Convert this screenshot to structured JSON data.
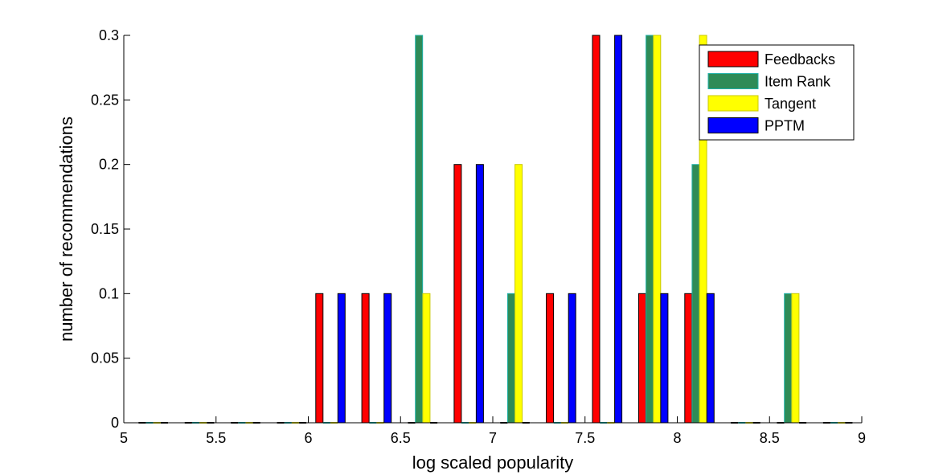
{
  "chart_data": {
    "type": "bar",
    "title": "",
    "xlabel": "log scaled popularity",
    "ylabel": "number of recommendations",
    "xlim": [
      5,
      9
    ],
    "ylim": [
      0,
      0.3
    ],
    "xticks": [
      "5",
      "5.5",
      "6",
      "6.5",
      "7",
      "7.5",
      "8",
      "8.5",
      "9"
    ],
    "yticks": [
      "0",
      "0.05",
      "0.1",
      "0.15",
      "0.2",
      "0.25",
      "0.3"
    ],
    "grid": false,
    "legend_position": "top-right",
    "series": [
      {
        "name": "Feedbacks",
        "color": "#ff0000",
        "stroke": "#000000",
        "points": [
          [
            5.1,
            0
          ],
          [
            5.35,
            0
          ],
          [
            5.6,
            0
          ],
          [
            5.85,
            0
          ],
          [
            6.06,
            0.1
          ],
          [
            6.31,
            0.1
          ],
          [
            6.56,
            0
          ],
          [
            6.81,
            0.2
          ],
          [
            7.06,
            0
          ],
          [
            7.31,
            0.1
          ],
          [
            7.56,
            0.3
          ],
          [
            7.81,
            0.1
          ],
          [
            8.06,
            0.1
          ],
          [
            8.31,
            0
          ],
          [
            8.56,
            0
          ],
          [
            8.81,
            0
          ]
        ]
      },
      {
        "name": "Item Rank",
        "color": "#2e8b57",
        "stroke": "#20b2aa",
        "points": [
          [
            5.14,
            0
          ],
          [
            5.39,
            0
          ],
          [
            5.64,
            0
          ],
          [
            5.89,
            0
          ],
          [
            6.1,
            0
          ],
          [
            6.35,
            0
          ],
          [
            6.6,
            0.3
          ],
          [
            6.85,
            0
          ],
          [
            7.1,
            0.1
          ],
          [
            7.35,
            0
          ],
          [
            7.6,
            0
          ],
          [
            7.85,
            0.3
          ],
          [
            8.1,
            0.2
          ],
          [
            8.35,
            0
          ],
          [
            8.6,
            0.1
          ],
          [
            8.85,
            0
          ]
        ]
      },
      {
        "name": "Tangent",
        "color": "#ffff00",
        "stroke": "#c8c800",
        "points": [
          [
            5.18,
            0
          ],
          [
            5.43,
            0
          ],
          [
            5.68,
            0
          ],
          [
            5.93,
            0
          ],
          [
            6.14,
            0
          ],
          [
            6.39,
            0
          ],
          [
            6.64,
            0.1
          ],
          [
            6.89,
            0
          ],
          [
            7.14,
            0.2
          ],
          [
            7.39,
            0
          ],
          [
            7.64,
            0
          ],
          [
            7.89,
            0.3
          ],
          [
            8.14,
            0.3
          ],
          [
            8.39,
            0
          ],
          [
            8.64,
            0.1
          ],
          [
            8.89,
            0
          ]
        ]
      },
      {
        "name": "PPTM",
        "color": "#0000ff",
        "stroke": "#000000",
        "points": [
          [
            5.22,
            0
          ],
          [
            5.47,
            0
          ],
          [
            5.72,
            0
          ],
          [
            5.97,
            0
          ],
          [
            6.18,
            0.1
          ],
          [
            6.43,
            0.1
          ],
          [
            6.68,
            0
          ],
          [
            6.93,
            0.2
          ],
          [
            7.18,
            0
          ],
          [
            7.43,
            0.1
          ],
          [
            7.68,
            0.3
          ],
          [
            7.93,
            0.1
          ],
          [
            8.18,
            0.1
          ],
          [
            8.43,
            0
          ],
          [
            8.68,
            0
          ],
          [
            8.93,
            0
          ]
        ]
      }
    ]
  }
}
